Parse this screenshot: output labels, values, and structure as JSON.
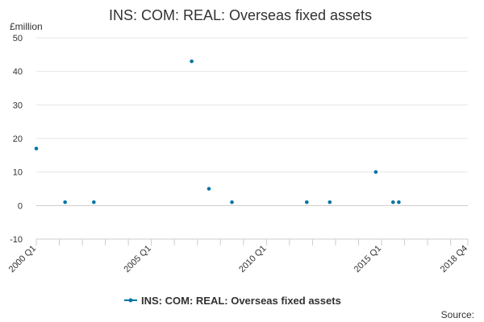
{
  "chart_data": {
    "type": "scatter",
    "title": "INS: COM: REAL: Overseas fixed assets",
    "unit_label": "£million",
    "ylim": [
      -10,
      50
    ],
    "y_ticks": [
      -10,
      0,
      10,
      20,
      30,
      40,
      50
    ],
    "x_tick_labels": [
      "2000 Q1",
      "2005 Q1",
      "2010 Q1",
      "2015 Q1",
      "2018 Q4"
    ],
    "x_start": "2000 Q1",
    "x_end": "2018 Q4",
    "grid": true,
    "legend_position": "bottom-center",
    "series": [
      {
        "name": "INS: COM: REAL: Overseas fixed assets",
        "color": "#0075a3",
        "points": [
          {
            "x": "2000 Q1",
            "y": 17
          },
          {
            "x": "2001 Q2",
            "y": 1
          },
          {
            "x": "2002 Q3",
            "y": 1
          },
          {
            "x": "2006 Q4",
            "y": 43
          },
          {
            "x": "2007 Q3",
            "y": 5
          },
          {
            "x": "2008 Q3",
            "y": 1
          },
          {
            "x": "2011 Q4",
            "y": 1
          },
          {
            "x": "2012 Q4",
            "y": 1
          },
          {
            "x": "2014 Q4",
            "y": 10
          },
          {
            "x": "2015 Q3",
            "y": 1
          },
          {
            "x": "2015 Q4",
            "y": 1
          }
        ]
      }
    ]
  },
  "source_label": "Source:"
}
